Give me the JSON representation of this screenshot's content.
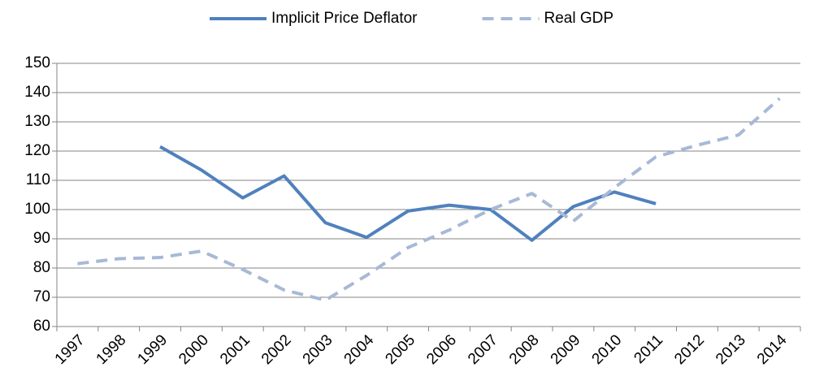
{
  "chart_data": {
    "type": "line",
    "categories": [
      "1997",
      "1998",
      "1999",
      "2000",
      "2001",
      "2002",
      "2003",
      "2004",
      "2005",
      "2006",
      "2007",
      "2008",
      "2009",
      "2010",
      "2011",
      "2012",
      "2013",
      "2014"
    ],
    "series": [
      {
        "name": "Implicit Price Deflator",
        "color": "#4f81bd",
        "dashed": false,
        "values": [
          null,
          null,
          121.5,
          113.5,
          104,
          111.5,
          95.5,
          90.5,
          99.5,
          101.5,
          100,
          89.5,
          101,
          106,
          102,
          null,
          null,
          null
        ]
      },
      {
        "name": "Real GDP",
        "color": "#a7b9d6",
        "dashed": true,
        "values": [
          81.5,
          83.2,
          83.6,
          85.8,
          79.5,
          72.5,
          69,
          77.5,
          87,
          93,
          100,
          105.5,
          96,
          107.5,
          118,
          122,
          125.5,
          138
        ]
      }
    ],
    "ylim": [
      60,
      150
    ],
    "yticks": [
      60,
      70,
      80,
      90,
      100,
      110,
      120,
      130,
      140,
      150
    ],
    "grid": true,
    "legend": "top"
  }
}
